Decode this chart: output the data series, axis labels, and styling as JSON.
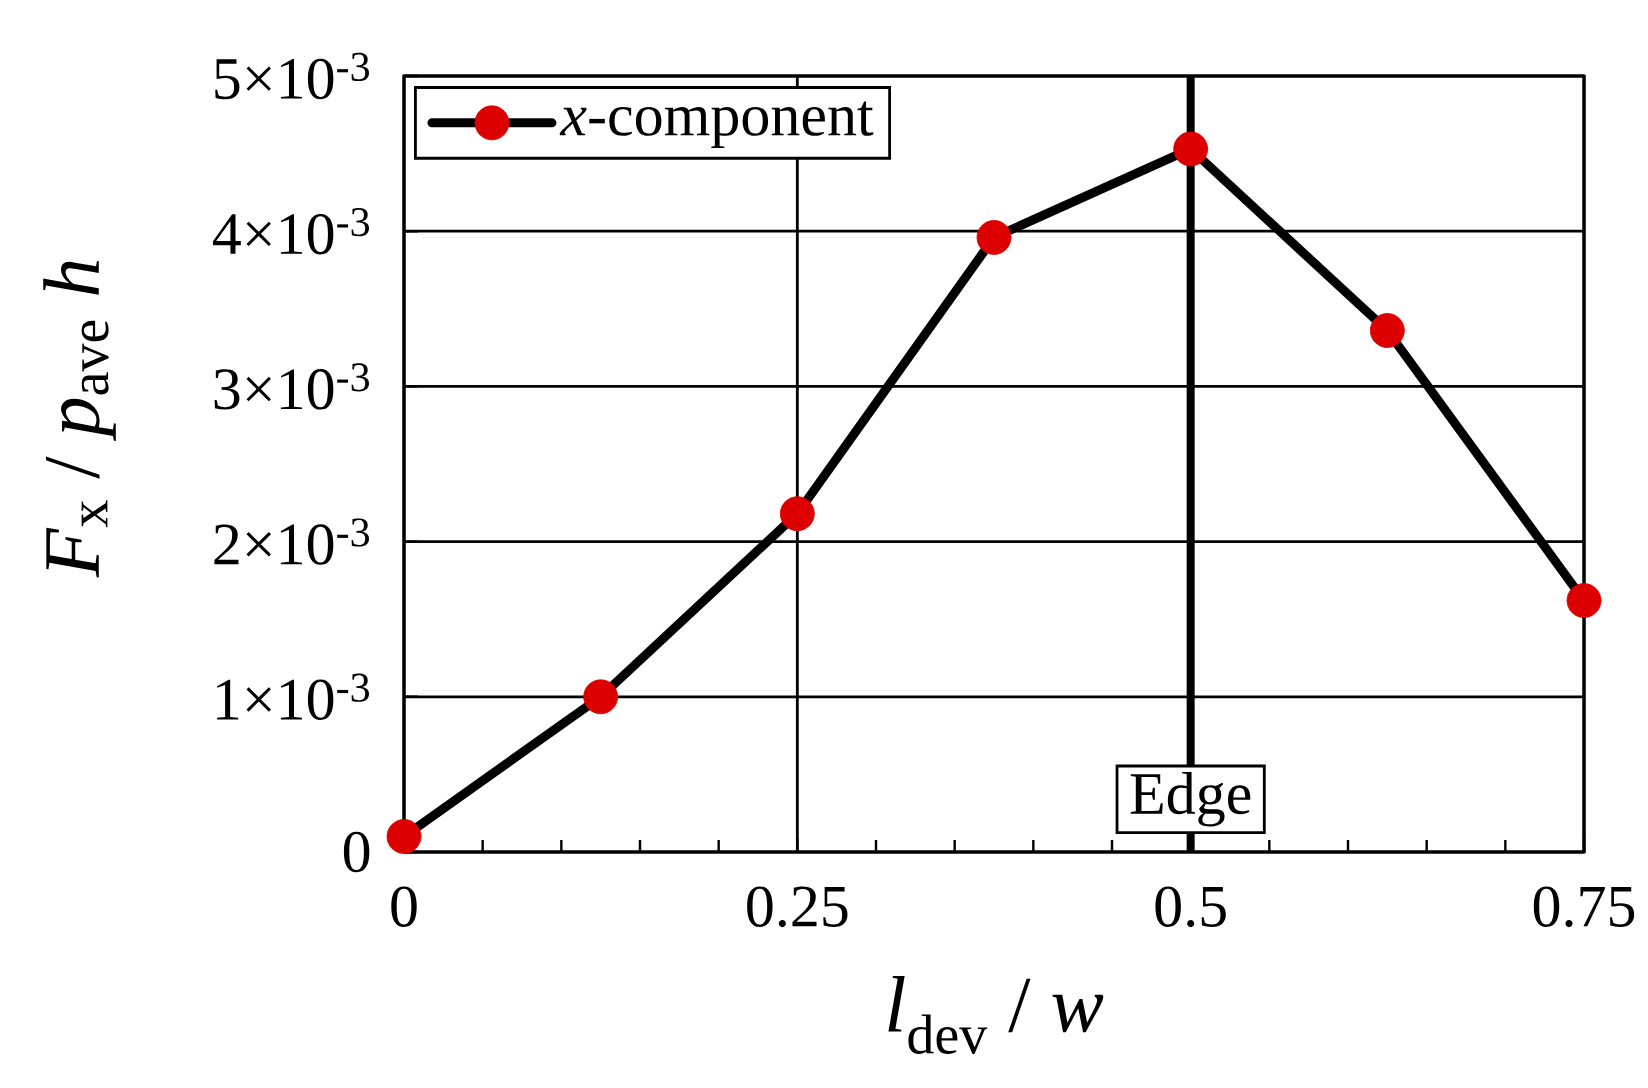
{
  "chart_data": {
    "type": "line",
    "xlabel": "*l*$_{dev}$ / *w*",
    "ylabel": "*F*$_{x}$ / *p*$_{ave}$ *h*",
    "x": [
      0,
      0.125,
      0.25,
      0.375,
      0.5,
      0.625,
      0.75
    ],
    "series": [
      {
        "name": "*x*-component",
        "color": "#dd0000",
        "values": [
          0.0001,
          0.001,
          0.00218,
          0.00396,
          0.00453,
          0.00336,
          0.00162
        ]
      }
    ],
    "xlim": [
      0,
      0.75
    ],
    "ylim": [
      0,
      0.005
    ],
    "xticks": [
      0,
      {
        "value": 0.05,
        "label": null
      },
      {
        "value": 0.1,
        "label": null
      },
      {
        "value": 0.15,
        "label": null
      },
      {
        "value": 0.2,
        "label": null
      },
      0.25,
      {
        "value": 0.3,
        "label": null
      },
      {
        "value": 0.35,
        "label": null
      },
      {
        "value": 0.4,
        "label": null
      },
      {
        "value": 0.45,
        "label": null
      },
      0.5,
      {
        "value": 0.55,
        "label": null
      },
      {
        "value": 0.6,
        "label": null
      },
      {
        "value": 0.65,
        "label": null
      },
      {
        "value": 0.7,
        "label": null
      },
      0.75
    ],
    "yticks": [
      0,
      {
        "value": 0.001,
        "label": "1×10$^{-3}$"
      },
      {
        "value": 0.002,
        "label": "2×10$^{-3}$"
      },
      {
        "value": 0.003,
        "label": "3×10$^{-3}$"
      },
      {
        "value": 0.004,
        "label": "4×10$^{-3}$"
      },
      {
        "value": 0.005,
        "label": "5×10$^{-3}$"
      }
    ],
    "grid": true,
    "legend": "top left",
    "marker": "circle",
    "line_style": "solid",
    "ref_lines": [
      {
        "axis": "x",
        "value": 0.5,
        "label": "Edge"
      }
    ]
  }
}
